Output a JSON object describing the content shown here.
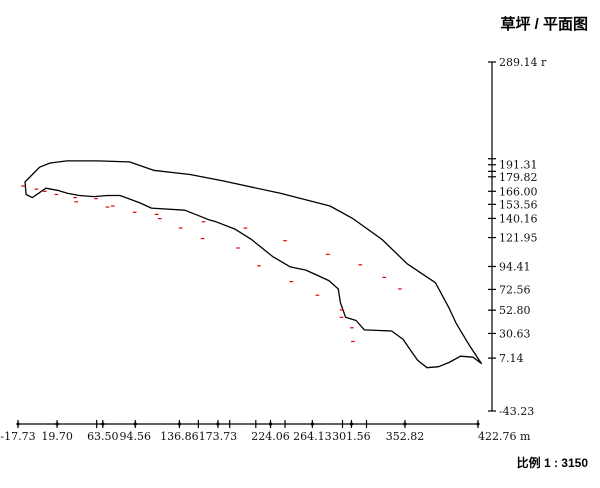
{
  "title": "草坪 / 平面图",
  "scale_label": "比例 1 : 3150",
  "colors": {
    "outline": "#000000",
    "markers": "#e00000",
    "axis": "#000000"
  },
  "y_axis": {
    "min": -43.23,
    "max": 289.14,
    "unit": "r",
    "ticks": [
      "289.14",
      "191.31",
      "179.82",
      "166.00",
      "153.56",
      "140.16",
      "121.95",
      "94.41",
      "72.56",
      "52.80",
      "30.63",
      "7.14",
      "-43.23"
    ],
    "extra_marks": [
      197.0,
      185.0
    ]
  },
  "x_axis": {
    "min": -17.73,
    "max": 422.76,
    "unit": "m",
    "ticks": [
      "-17.73",
      "19.70",
      "63.50",
      "94.56",
      "136.86",
      "173.73",
      "224.06",
      "264.13",
      "301.56",
      "352.82",
      "422.76"
    ],
    "extra_marks": [
      57.6,
      155.0,
      185.0,
      210.0,
      238.0,
      293.0,
      316.0
    ]
  },
  "chart_data": {
    "type": "scatter",
    "description_series": "lawn boundary polygon",
    "boundary": [
      [
        -11,
        175
      ],
      [
        -10,
        163
      ],
      [
        -4,
        160
      ],
      [
        9,
        169
      ],
      [
        20,
        167
      ],
      [
        30,
        164
      ],
      [
        41,
        162
      ],
      [
        55,
        161
      ],
      [
        68,
        162
      ],
      [
        80,
        162
      ],
      [
        99,
        155
      ],
      [
        110,
        150
      ],
      [
        142,
        148
      ],
      [
        165,
        139
      ],
      [
        172,
        137
      ],
      [
        190,
        130
      ],
      [
        206,
        120
      ],
      [
        226,
        104
      ],
      [
        243,
        94
      ],
      [
        258,
        91
      ],
      [
        280,
        81
      ],
      [
        289,
        73
      ],
      [
        291,
        60
      ],
      [
        296,
        46
      ],
      [
        306,
        43
      ],
      [
        314,
        34
      ],
      [
        340,
        33
      ],
      [
        351,
        25
      ],
      [
        360,
        12
      ],
      [
        365,
        5
      ],
      [
        374,
        -2
      ],
      [
        385,
        -1
      ],
      [
        395,
        3
      ],
      [
        406,
        9
      ],
      [
        418,
        8
      ],
      [
        426,
        2
      ],
      [
        414,
        20
      ],
      [
        402,
        40
      ],
      [
        395,
        55
      ],
      [
        382,
        79
      ],
      [
        355,
        97
      ],
      [
        331,
        120
      ],
      [
        303,
        140
      ],
      [
        281,
        152
      ],
      [
        234,
        164
      ],
      [
        178,
        176
      ],
      [
        147,
        182
      ],
      [
        112,
        186
      ],
      [
        89,
        194
      ],
      [
        59,
        195
      ],
      [
        48,
        195
      ],
      [
        29,
        195
      ],
      [
        13,
        193
      ],
      [
        3,
        189
      ],
      [
        -3,
        183
      ]
    ],
    "markers": [
      [
        -13,
        171
      ],
      [
        0,
        168
      ],
      [
        8,
        166
      ],
      [
        37,
        160
      ],
      [
        57,
        159
      ],
      [
        73,
        152
      ],
      [
        94,
        146
      ],
      [
        118,
        140
      ],
      [
        138,
        131
      ],
      [
        159,
        121
      ],
      [
        193,
        112
      ],
      [
        213,
        95
      ],
      [
        244,
        80
      ],
      [
        269,
        67
      ],
      [
        292,
        53
      ],
      [
        292,
        46
      ],
      [
        302,
        36
      ],
      [
        303,
        23
      ],
      [
        348,
        73
      ],
      [
        333,
        84
      ],
      [
        310,
        96
      ],
      [
        279,
        106
      ],
      [
        238,
        119
      ],
      [
        200,
        131
      ],
      [
        160,
        137
      ],
      [
        115,
        144
      ],
      [
        68,
        151
      ],
      [
        38,
        156
      ],
      [
        19,
        163
      ]
    ]
  }
}
